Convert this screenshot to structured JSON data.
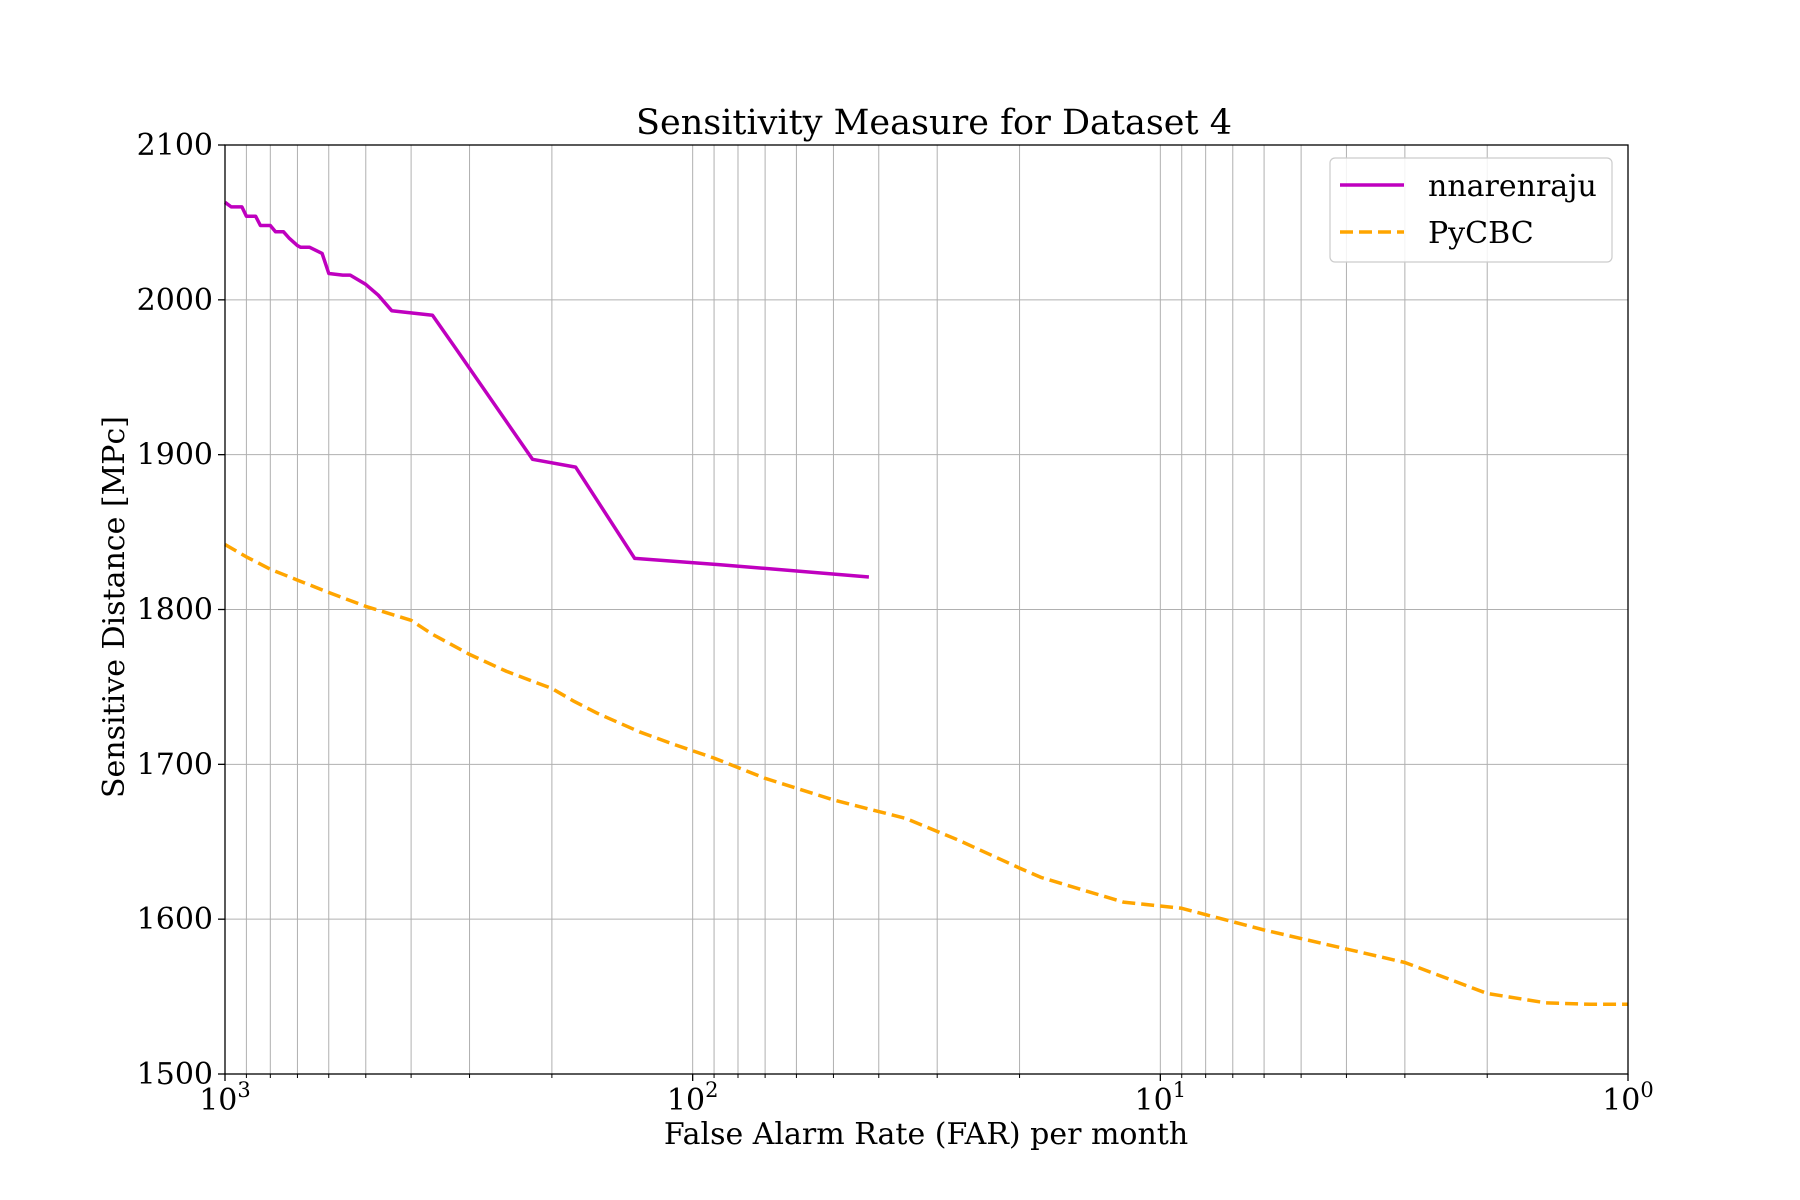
{
  "chart_data": {
    "type": "line",
    "title": "Sensitivity Measure for Dataset 4",
    "xlabel": "False Alarm Rate (FAR) per month",
    "ylabel": "Sensitive Distance [MPc]",
    "xscale": "log",
    "xaxis_inverted": true,
    "xlim": [
      1000,
      1
    ],
    "ylim": [
      1500,
      2100
    ],
    "grid": true,
    "legend_position": "top-right",
    "x_ticks": [
      {
        "value": 1000,
        "base": "10",
        "exp": "3"
      },
      {
        "value": 100,
        "base": "10",
        "exp": "2"
      },
      {
        "value": 10,
        "base": "10",
        "exp": "1"
      },
      {
        "value": 1,
        "base": "10",
        "exp": "0"
      }
    ],
    "y_ticks": [
      1500,
      1600,
      1700,
      1800,
      1900,
      2000,
      2100
    ],
    "series": [
      {
        "name": "nnarenraju",
        "color": "#bf00bf",
        "style": "solid",
        "x": [
          1000,
          970,
          920,
          900,
          860,
          840,
          800,
          780,
          750,
          730,
          700,
          690,
          660,
          620,
          600,
          560,
          540,
          500,
          470,
          440,
          360,
          320,
          220,
          178,
          133,
          88,
          42
        ],
        "y": [
          2063,
          2060,
          2060,
          2054,
          2054,
          2048,
          2048,
          2044,
          2044,
          2040,
          2035,
          2034,
          2034,
          2030,
          2017,
          2016,
          2016,
          2010,
          2003,
          1993,
          1990,
          1968,
          1897,
          1892,
          1833,
          1829,
          1821
        ]
      },
      {
        "name": "PyCBC",
        "color": "#ffa500",
        "style": "dashed",
        "x": [
          1000,
          900,
          800,
          700,
          600,
          500,
          400,
          360,
          300,
          250,
          200,
          180,
          160,
          130,
          110,
          90,
          70,
          50,
          35,
          27,
          20,
          18,
          12,
          9,
          6,
          3,
          2,
          1.5,
          1.2,
          1
        ],
        "y": [
          1842,
          1834,
          1826,
          1819,
          1811,
          1802,
          1793,
          1784,
          1771,
          1760,
          1749,
          1741,
          1733,
          1721,
          1713,
          1704,
          1691,
          1677,
          1665,
          1651,
          1633,
          1627,
          1611,
          1607,
          1593,
          1572,
          1552,
          1546,
          1545,
          1545
        ]
      }
    ]
  }
}
